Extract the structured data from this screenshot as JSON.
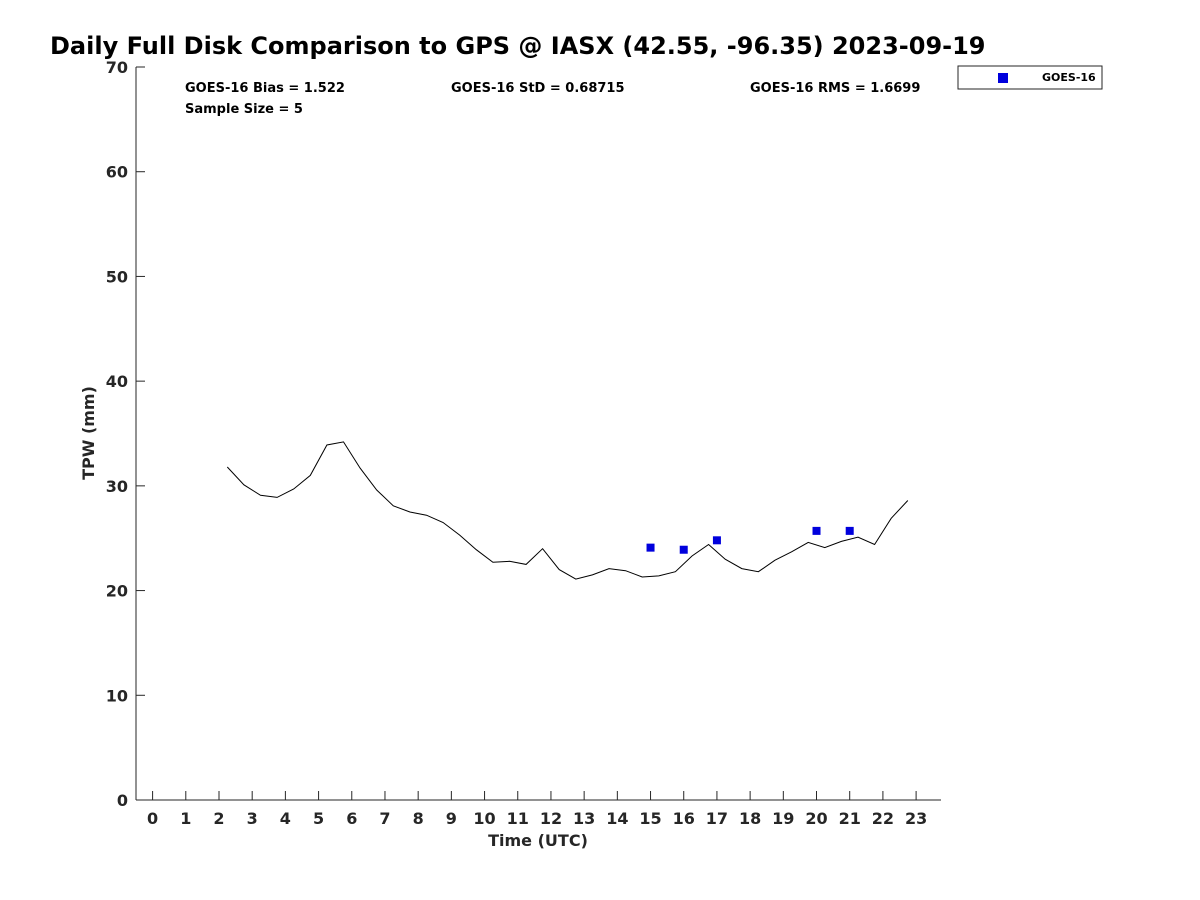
{
  "chart_data": {
    "type": "line",
    "title": "Daily Full Disk Comparison to GPS @ IASX (42.55, -96.35) 2023-09-19",
    "xlabel": "Time (UTC)",
    "ylabel": "TPW (mm)",
    "xlim": [
      -0.5,
      23.75
    ],
    "ylim": [
      0,
      70
    ],
    "x_ticks": [
      0,
      1,
      2,
      3,
      4,
      5,
      6,
      7,
      8,
      9,
      10,
      11,
      12,
      13,
      14,
      15,
      16,
      17,
      18,
      19,
      20,
      21,
      22,
      23
    ],
    "y_ticks": [
      0,
      10,
      20,
      30,
      40,
      50,
      60,
      70
    ],
    "grid": false,
    "legend_position": "top-right",
    "legend": [
      "GOES-16"
    ],
    "stats": [
      "GOES-16 Bias = 1.522",
      "GOES-16 StD = 0.68715",
      "GOES-16 RMS = 1.6699",
      "Sample Size = 5"
    ],
    "series": [
      {
        "style": "line",
        "color": "#000000",
        "x": [
          2.25,
          2.75,
          3.25,
          3.75,
          4.25,
          4.75,
          5.25,
          5.75,
          6.25,
          6.75,
          7.25,
          7.75,
          8.25,
          8.75,
          9.25,
          9.75,
          10.25,
          10.75,
          11.25,
          11.75,
          12.25,
          12.75,
          13.25,
          13.75,
          14.25,
          14.75,
          15.25,
          15.75,
          16.25,
          16.75,
          17.25,
          17.75,
          18.25,
          18.75,
          19.25,
          19.75,
          20.25,
          20.75,
          21.25,
          21.75,
          22.25,
          22.75
        ],
        "y": [
          31.8,
          30.1,
          29.1,
          28.9,
          29.7,
          31.0,
          33.9,
          34.2,
          31.7,
          29.6,
          28.1,
          27.5,
          27.2,
          26.5,
          25.3,
          23.9,
          22.7,
          22.8,
          22.5,
          24.0,
          22.0,
          21.1,
          21.5,
          22.1,
          21.9,
          21.3,
          21.4,
          21.8,
          23.3,
          24.4,
          23.0,
          22.1,
          21.8,
          22.9,
          23.7,
          24.6,
          24.1,
          24.7,
          25.1,
          24.4,
          26.9,
          28.6
        ]
      },
      {
        "name": "GOES-16",
        "style": "marker",
        "color": "#0000dd",
        "x": [
          15,
          16,
          17,
          20,
          21
        ],
        "y": [
          24.1,
          23.9,
          24.8,
          25.7,
          25.7
        ]
      }
    ]
  }
}
